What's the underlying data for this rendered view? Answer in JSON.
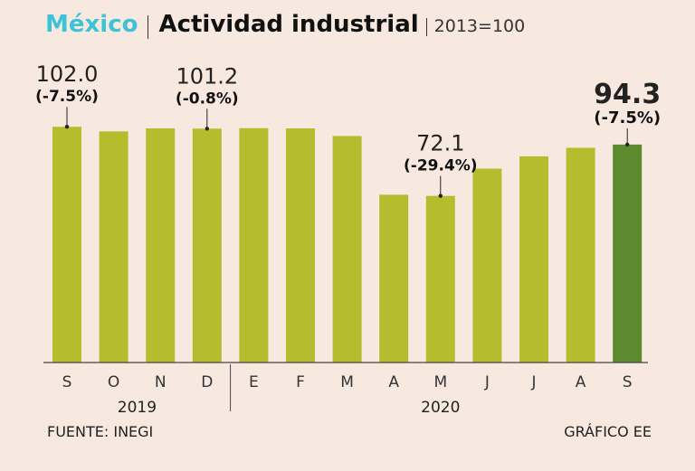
{
  "header": {
    "country": "México",
    "title": "Actividad industrial",
    "base": "2013=100"
  },
  "footer": {
    "source": "FUENTE: INEGI",
    "credit": "GRÁFICO EE"
  },
  "colors": {
    "bar": "#b5bd2e",
    "bar_highlight": "#5e8a2f",
    "axis": "#444444"
  },
  "chart_data": {
    "type": "bar",
    "title": "Actividad industrial",
    "subtitle": "2013=100",
    "categories": [
      "S",
      "O",
      "N",
      "D",
      "E",
      "F",
      "M",
      "A",
      "M",
      "J",
      "J",
      "A",
      "S"
    ],
    "groups": [
      {
        "label": "2019",
        "count": 4
      },
      {
        "label": "2020",
        "count": 9
      }
    ],
    "values": [
      102.0,
      100.0,
      101.3,
      101.2,
      101.4,
      101.3,
      98.0,
      72.6,
      72.1,
      83.9,
      89.2,
      92.9,
      94.3
    ],
    "ylim": [
      0,
      106
    ],
    "highlight_index": 12,
    "annotations": [
      {
        "index": 0,
        "value": "102.0",
        "change": "(-7.5%)",
        "bold": false
      },
      {
        "index": 3,
        "value": "101.2",
        "change": "(-0.8%)",
        "bold": false
      },
      {
        "index": 8,
        "value": "72.1",
        "change": "(-29.4%)",
        "bold": false
      },
      {
        "index": 12,
        "value": "94.3",
        "change": "(-7.5%)",
        "bold": true
      }
    ]
  }
}
